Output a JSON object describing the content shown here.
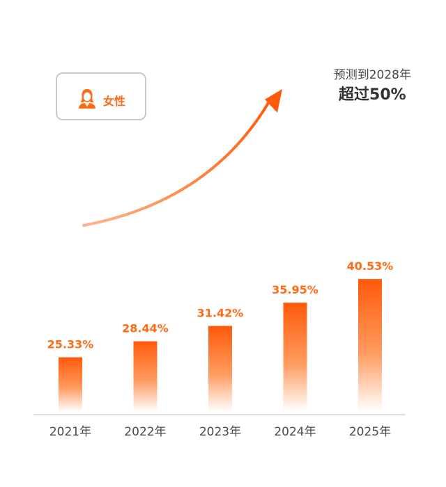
{
  "legend": {
    "label": "女性",
    "icon": "woman-avatar-icon"
  },
  "forecast": {
    "line1": "预测到2028年",
    "line2": "超过50%"
  },
  "colors": {
    "accent": "#ff6a14",
    "axis": "#d8d8d8",
    "text": "#4a4a4a"
  },
  "chart_data": {
    "type": "bar",
    "categories": [
      "2021年",
      "2022年",
      "2023年",
      "2024年",
      "2025年"
    ],
    "values": [
      25.33,
      28.44,
      31.42,
      35.95,
      40.53
    ],
    "data_labels": [
      "25.33%",
      "28.44%",
      "31.42%",
      "35.95%",
      "40.53%"
    ],
    "ylim": [
      0,
      45
    ],
    "grid": false,
    "trend_arrow": "upward"
  }
}
